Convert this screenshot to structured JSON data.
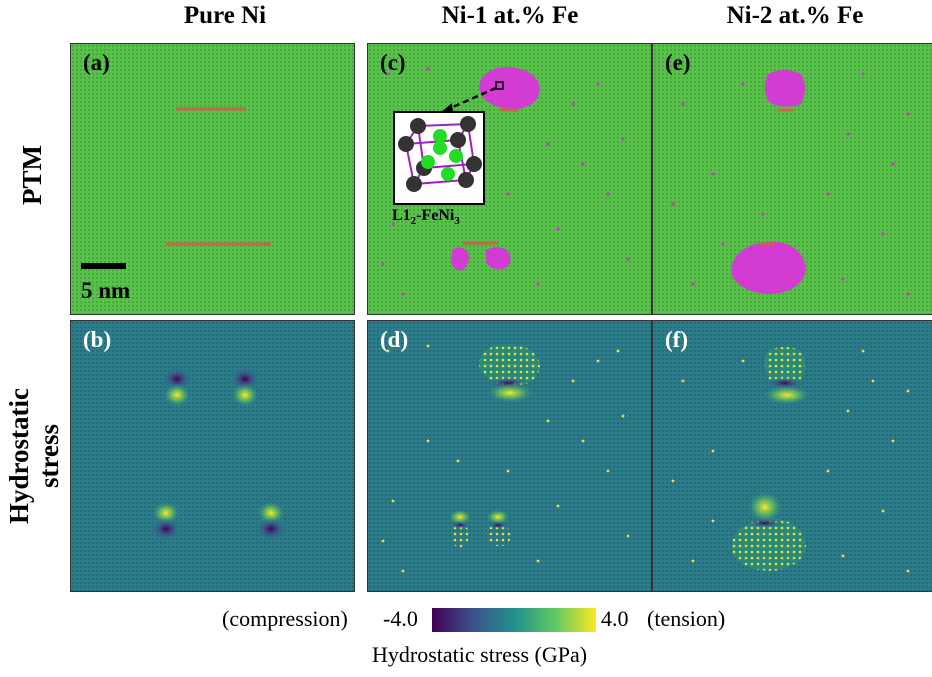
{
  "columns": [
    "Pure Ni",
    "Ni-1 at.% Fe",
    "Ni-2 at.% Fe"
  ],
  "rows": {
    "ptm": "PTM",
    "stress_line1": "Hydrostatic",
    "stress_line2": "stress"
  },
  "panels": {
    "a": "(a)",
    "b": "(b)",
    "c": "(c)",
    "d": "(d)",
    "e": "(e)",
    "f": "(f)"
  },
  "scale_bar": "5 nm",
  "inset": {
    "caption_main": "L1",
    "caption_sub1": "2",
    "caption_mid": "-FeNi",
    "caption_sub2": "3"
  },
  "colorbar": {
    "left_label": "(compression)",
    "min": "-4.0",
    "max": "4.0",
    "right_label": "(tension)",
    "title": "Hydrostatic stress (GPa)",
    "colormap": [
      "#440154",
      "#3b528b",
      "#21908d",
      "#5dc963",
      "#fde725"
    ]
  },
  "colors": {
    "fcc_green": "#58c24a",
    "precipitate_magenta": "#d23cd2",
    "stacking_fault": "#c8644b",
    "stress_background": "#2b7d8a"
  }
}
